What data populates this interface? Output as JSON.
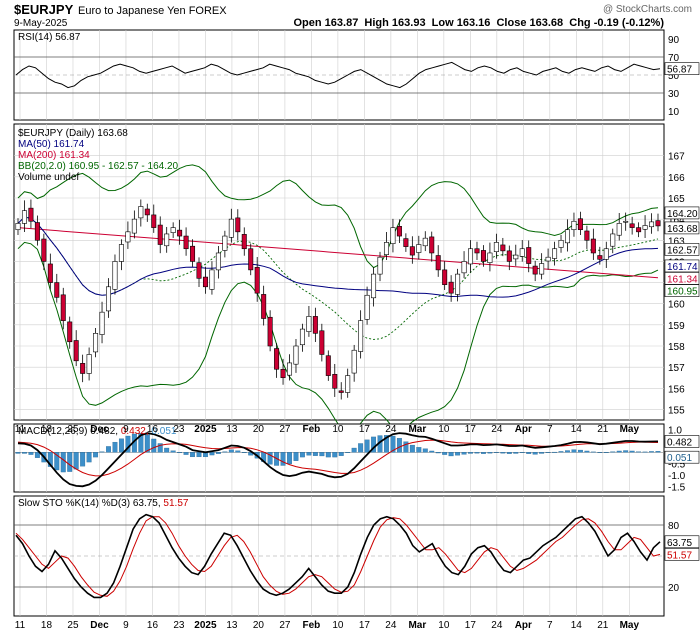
{
  "header": {
    "symbol": "$EURJPY",
    "description": "Euro to Japanese Yen FOREX",
    "date": "9-May-2025",
    "watermark": "@ StockCharts.com",
    "ohlc": "Open 163.87  High 163.93  Low 163.16  Close 163.68  Chg -0.19 (-0.12%)"
  },
  "colors": {
    "up": "#ffffff",
    "down": "#cc0033",
    "ma50": "#000080",
    "ma200": "#cc0033",
    "bb": "#006600",
    "macd": "#000000",
    "signal": "#cc0000",
    "hist": "#3d8fc9",
    "k": "#000000",
    "d": "#cc0000",
    "grid": "#cfcfcf"
  },
  "xaxis": {
    "labels": [
      "11",
      "18",
      "25",
      "Dec",
      "9",
      "16",
      "23",
      "2025",
      "13",
      "20",
      "27",
      "Feb",
      "10",
      "17",
      "24",
      "Mar",
      "10",
      "17",
      "24",
      "Apr",
      "7",
      "14",
      "21",
      "May"
    ]
  },
  "chart_data": [
    {
      "type": "line",
      "panel": "RSI",
      "legend": [
        "RSI(14) 56.87"
      ],
      "ylim": [
        0,
        100
      ],
      "yticks": [
        "90",
        "70",
        "50",
        "30",
        "10"
      ],
      "current_label": "56.87",
      "series": [
        {
          "name": "RSI(14)",
          "values": [
            50,
            56,
            60,
            58,
            52,
            46,
            42,
            40,
            36,
            38,
            44,
            48,
            50,
            52,
            56,
            60,
            62,
            60,
            58,
            54,
            52,
            54,
            56,
            58,
            60,
            56,
            52,
            54,
            56,
            58,
            62,
            60,
            56,
            52,
            50,
            52,
            54,
            56,
            58,
            62,
            60,
            58,
            56,
            52,
            50,
            48,
            44,
            42,
            40,
            42,
            46,
            50,
            54,
            56,
            52,
            48,
            44,
            40,
            38,
            36,
            40,
            46,
            52,
            56,
            58,
            60,
            62,
            64,
            60,
            56,
            54,
            58,
            60,
            58,
            54,
            52,
            56,
            58,
            54,
            52,
            50,
            54,
            56,
            58,
            54,
            52,
            56,
            58,
            56,
            54,
            58,
            60,
            56,
            54,
            58,
            62,
            60,
            58,
            56,
            57
          ]
        }
      ]
    },
    {
      "type": "candlestick",
      "panel": "Price",
      "legend": [
        "$EURJPY (Daily) 163.68",
        "MA(50) 161.74",
        "MA(200) 161.34",
        "BB(20,2.0) 160.95 - 162.57 - 164.20",
        "Volume undef"
      ],
      "ylim": [
        154.5,
        168.5
      ],
      "yticks": [
        "167",
        "166",
        "165",
        "164",
        "163",
        "162",
        "161",
        "160",
        "159",
        "158",
        "157",
        "156",
        "155"
      ],
      "closes": [
        163.8,
        164.4,
        163.9,
        163.0,
        162.0,
        161.0,
        160.3,
        159.2,
        158.2,
        157.3,
        156.7,
        157.6,
        158.6,
        159.6,
        160.8,
        162.0,
        162.8,
        163.4,
        164.0,
        164.6,
        164.2,
        163.6,
        162.8,
        163.3,
        163.6,
        163.2,
        162.6,
        162.0,
        161.2,
        160.8,
        161.6,
        162.4,
        163.2,
        164.0,
        163.4,
        162.6,
        161.6,
        160.5,
        159.3,
        158.0,
        156.9,
        156.5,
        157.2,
        158.0,
        158.8,
        159.4,
        158.6,
        157.6,
        156.6,
        156.0,
        155.8,
        156.6,
        157.8,
        159.2,
        160.4,
        161.4,
        162.2,
        162.9,
        163.6,
        163.2,
        162.7,
        162.3,
        162.8,
        163.1,
        162.4,
        161.6,
        160.9,
        160.5,
        161.4,
        162.0,
        162.6,
        162.4,
        162.0,
        162.4,
        162.9,
        162.5,
        162.0,
        162.3,
        162.6,
        161.9,
        161.4,
        161.9,
        162.2,
        162.6,
        163.0,
        163.5,
        163.9,
        163.5,
        163.0,
        162.4,
        162.1,
        162.6,
        163.3,
        163.8,
        163.9,
        163.6,
        163.4,
        163.7,
        163.87,
        163.68
      ],
      "current_labels": {
        "bb_upper": "164.20",
        "close": "163.68",
        "bb_mid": "162.57",
        "ma50": "161.74",
        "ma200": "161.34",
        "bb_lower": "160.95"
      }
    },
    {
      "type": "line",
      "panel": "MACD",
      "legend": [
        "MACD(12,26,9) 0.482,",
        "0.432,",
        "0.051"
      ],
      "ylim": [
        -1.75,
        1.25
      ],
      "yticks": [
        "1.0",
        "0.5",
        "-0.5",
        "-1.0",
        "-1.5"
      ],
      "current_labels": {
        "macd": "0.482",
        "hist": "0.051"
      },
      "series": [
        {
          "name": "MACD",
          "values": [
            0.4,
            0.38,
            0.3,
            0.1,
            -0.2,
            -0.55,
            -0.9,
            -1.2,
            -1.4,
            -1.48,
            -1.5,
            -1.42,
            -1.25,
            -1.0,
            -0.7,
            -0.4,
            -0.1,
            0.2,
            0.5,
            0.75,
            0.85,
            0.8,
            0.7,
            0.55,
            0.45,
            0.35,
            0.25,
            0.1,
            0.05,
            0.0,
            0.05,
            0.1,
            0.2,
            0.3,
            0.28,
            0.2,
            0.05,
            -0.15,
            -0.4,
            -0.65,
            -0.85,
            -1.0,
            -1.05,
            -1.0,
            -0.9,
            -0.85,
            -0.9,
            -0.95,
            -1.05,
            -1.1,
            -1.08,
            -0.95,
            -0.7,
            -0.4,
            -0.1,
            0.2,
            0.45,
            0.65,
            0.8,
            0.85,
            0.82,
            0.75,
            0.7,
            0.68,
            0.6,
            0.5,
            0.4,
            0.3,
            0.3,
            0.32,
            0.35,
            0.35,
            0.32,
            0.33,
            0.35,
            0.32,
            0.28,
            0.28,
            0.3,
            0.25,
            0.2,
            0.22,
            0.25,
            0.28,
            0.32,
            0.38,
            0.45,
            0.46,
            0.44,
            0.4,
            0.36,
            0.38,
            0.42,
            0.46,
            0.5,
            0.5,
            0.48,
            0.47,
            0.48,
            0.482
          ]
        },
        {
          "name": "Signal",
          "values": [
            0.45,
            0.43,
            0.4,
            0.34,
            0.23,
            0.08,
            -0.12,
            -0.33,
            -0.55,
            -0.74,
            -0.89,
            -0.99,
            -1.04,
            -1.03,
            -0.96,
            -0.85,
            -0.7,
            -0.52,
            -0.31,
            -0.1,
            0.07,
            0.21,
            0.31,
            0.36,
            0.38,
            0.37,
            0.35,
            0.3,
            0.25,
            0.2,
            0.17,
            0.16,
            0.17,
            0.19,
            0.21,
            0.21,
            0.18,
            0.11,
            0.01,
            -0.12,
            -0.27,
            -0.42,
            -0.54,
            -0.63,
            -0.69,
            -0.72,
            -0.75,
            -0.79,
            -0.84,
            -0.89,
            -0.93,
            -0.93,
            -0.89,
            -0.79,
            -0.65,
            -0.48,
            -0.29,
            -0.1,
            0.08,
            0.23,
            0.35,
            0.43,
            0.48,
            0.52,
            0.54,
            0.53,
            0.5,
            0.46,
            0.43,
            0.41,
            0.4,
            0.39,
            0.38,
            0.37,
            0.36,
            0.36,
            0.34,
            0.33,
            0.32,
            0.31,
            0.29,
            0.27,
            0.27,
            0.27,
            0.28,
            0.3,
            0.33,
            0.36,
            0.38,
            0.38,
            0.38,
            0.38,
            0.39,
            0.4,
            0.42,
            0.44,
            0.45,
            0.45,
            0.44,
            0.432
          ]
        }
      ]
    },
    {
      "type": "line",
      "panel": "Slow STO",
      "legend": [
        "Slow STO %K(14) %D(3) 63.75,",
        "51.57"
      ],
      "ylim": [
        0,
        100
      ],
      "yticks": [
        "80",
        "20"
      ],
      "current_labels": {
        "k": "63.75",
        "d": "51.57"
      },
      "series": [
        {
          "name": "%K",
          "values": [
            70,
            62,
            50,
            40,
            35,
            42,
            55,
            48,
            38,
            28,
            20,
            14,
            10,
            10,
            14,
            24,
            40,
            58,
            76,
            86,
            90,
            88,
            82,
            70,
            58,
            48,
            40,
            34,
            32,
            40,
            52,
            62,
            72,
            70,
            60,
            48,
            36,
            26,
            18,
            14,
            12,
            14,
            18,
            24,
            30,
            38,
            30,
            22,
            16,
            14,
            14,
            20,
            34,
            52,
            68,
            80,
            86,
            88,
            86,
            80,
            72,
            60,
            54,
            58,
            62,
            50,
            40,
            34,
            32,
            40,
            52,
            58,
            60,
            54,
            44,
            36,
            34,
            40,
            46,
            48,
            54,
            60,
            64,
            68,
            74,
            80,
            86,
            88,
            82,
            74,
            62,
            50,
            56,
            68,
            72,
            64,
            54,
            46,
            58,
            63.75
          ]
        },
        {
          "name": "%D",
          "values": [
            72,
            66,
            58,
            50,
            42,
            38,
            44,
            50,
            48,
            40,
            30,
            22,
            15,
            12,
            11,
            16,
            26,
            40,
            57,
            72,
            84,
            88,
            88,
            82,
            72,
            60,
            50,
            42,
            36,
            35,
            40,
            50,
            60,
            68,
            70,
            64,
            54,
            42,
            30,
            22,
            16,
            13,
            14,
            18,
            24,
            30,
            32,
            30,
            24,
            18,
            15,
            16,
            22,
            35,
            50,
            65,
            78,
            85,
            87,
            86,
            80,
            72,
            64,
            56,
            56,
            58,
            52,
            44,
            36,
            34,
            38,
            46,
            54,
            58,
            56,
            48,
            40,
            36,
            38,
            42,
            46,
            52,
            58,
            64,
            68,
            74,
            80,
            85,
            86,
            82,
            74,
            64,
            56,
            56,
            62,
            68,
            66,
            58,
            50,
            51.57
          ]
        }
      ]
    }
  ]
}
